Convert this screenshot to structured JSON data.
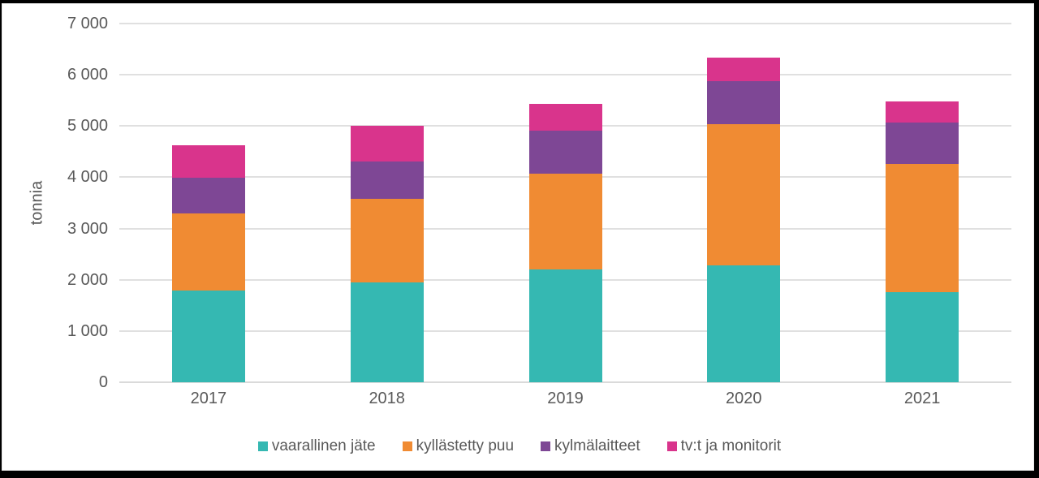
{
  "chart_data": {
    "type": "bar",
    "stacked": true,
    "title": "",
    "xlabel": "",
    "ylabel": "tonnia",
    "categories": [
      "2017",
      "2018",
      "2019",
      "2020",
      "2021"
    ],
    "series": [
      {
        "name": "vaarallinen jäte",
        "color": "#35B8B2",
        "values": [
          1790,
          1950,
          2200,
          2280,
          1760
        ]
      },
      {
        "name": "kyllästetty puu",
        "color": "#F08B33",
        "values": [
          1510,
          1630,
          1870,
          2760,
          2500
        ]
      },
      {
        "name": "kylmälaitteet",
        "color": "#7E4795",
        "values": [
          700,
          730,
          840,
          830,
          810
        ]
      },
      {
        "name": "tv:t ja monitorit",
        "color": "#D9348C",
        "values": [
          630,
          690,
          530,
          470,
          410
        ]
      }
    ],
    "totals": [
      4630,
      5000,
      5440,
      6340,
      5480
    ],
    "ylim": [
      0,
      7000
    ],
    "ytick_step": 1000,
    "ytick_labels": [
      "0",
      "1 000",
      "2 000",
      "3 000",
      "4 000",
      "5 000",
      "6 000",
      "7 000"
    ],
    "grid": "horizontal",
    "legend_position": "bottom"
  },
  "colors": {
    "text": "#595959",
    "gridline": "#E0E0E0",
    "chart_background": "#FFFFFF",
    "outer_border": "#000000"
  }
}
